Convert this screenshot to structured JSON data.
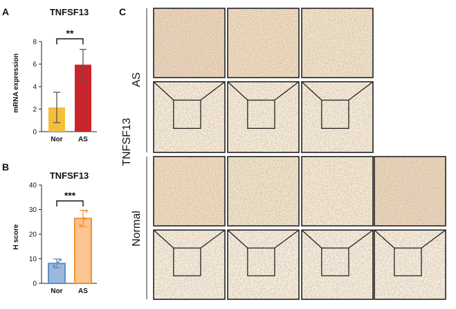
{
  "panel_labels": {
    "a": "A",
    "b": "B",
    "c": "C"
  },
  "chart_data": [
    {
      "type": "bar",
      "title": "TNFSF13",
      "ylabel": "mRNA expression",
      "xlabel": "",
      "categories": [
        "Nor",
        "AS"
      ],
      "values": [
        2.15,
        5.95
      ],
      "errors": [
        1.35,
        1.35
      ],
      "colors": [
        "#f5bf3b",
        "#c8262c"
      ],
      "ylim": [
        0,
        8
      ],
      "yticks": [
        0,
        2,
        4,
        6,
        8
      ],
      "significance": "**",
      "points": false
    },
    {
      "type": "bar",
      "title": "TNFSF13",
      "ylabel": "H score",
      "xlabel": "",
      "categories": [
        "Nor",
        "AS"
      ],
      "values": [
        8.1,
        26.4
      ],
      "errors": [
        1.8,
        3.3
      ],
      "colors": [
        "#9ab9dc",
        "#fbc490"
      ],
      "edge_colors": [
        "#5f8ec4",
        "#f0922f"
      ],
      "ylim": [
        0,
        40
      ],
      "yticks": [
        0,
        10,
        20,
        30,
        40
      ],
      "significance": "***",
      "points": [
        [
          7.0,
          8.4,
          9.6
        ],
        [
          23.5,
          26.3,
          29.4
        ]
      ]
    }
  ],
  "micrographs": {
    "marker_label": "TNFSF13",
    "groups": [
      {
        "name": "AS",
        "count": 3
      },
      {
        "name": "Normal",
        "count": 4
      }
    ]
  }
}
